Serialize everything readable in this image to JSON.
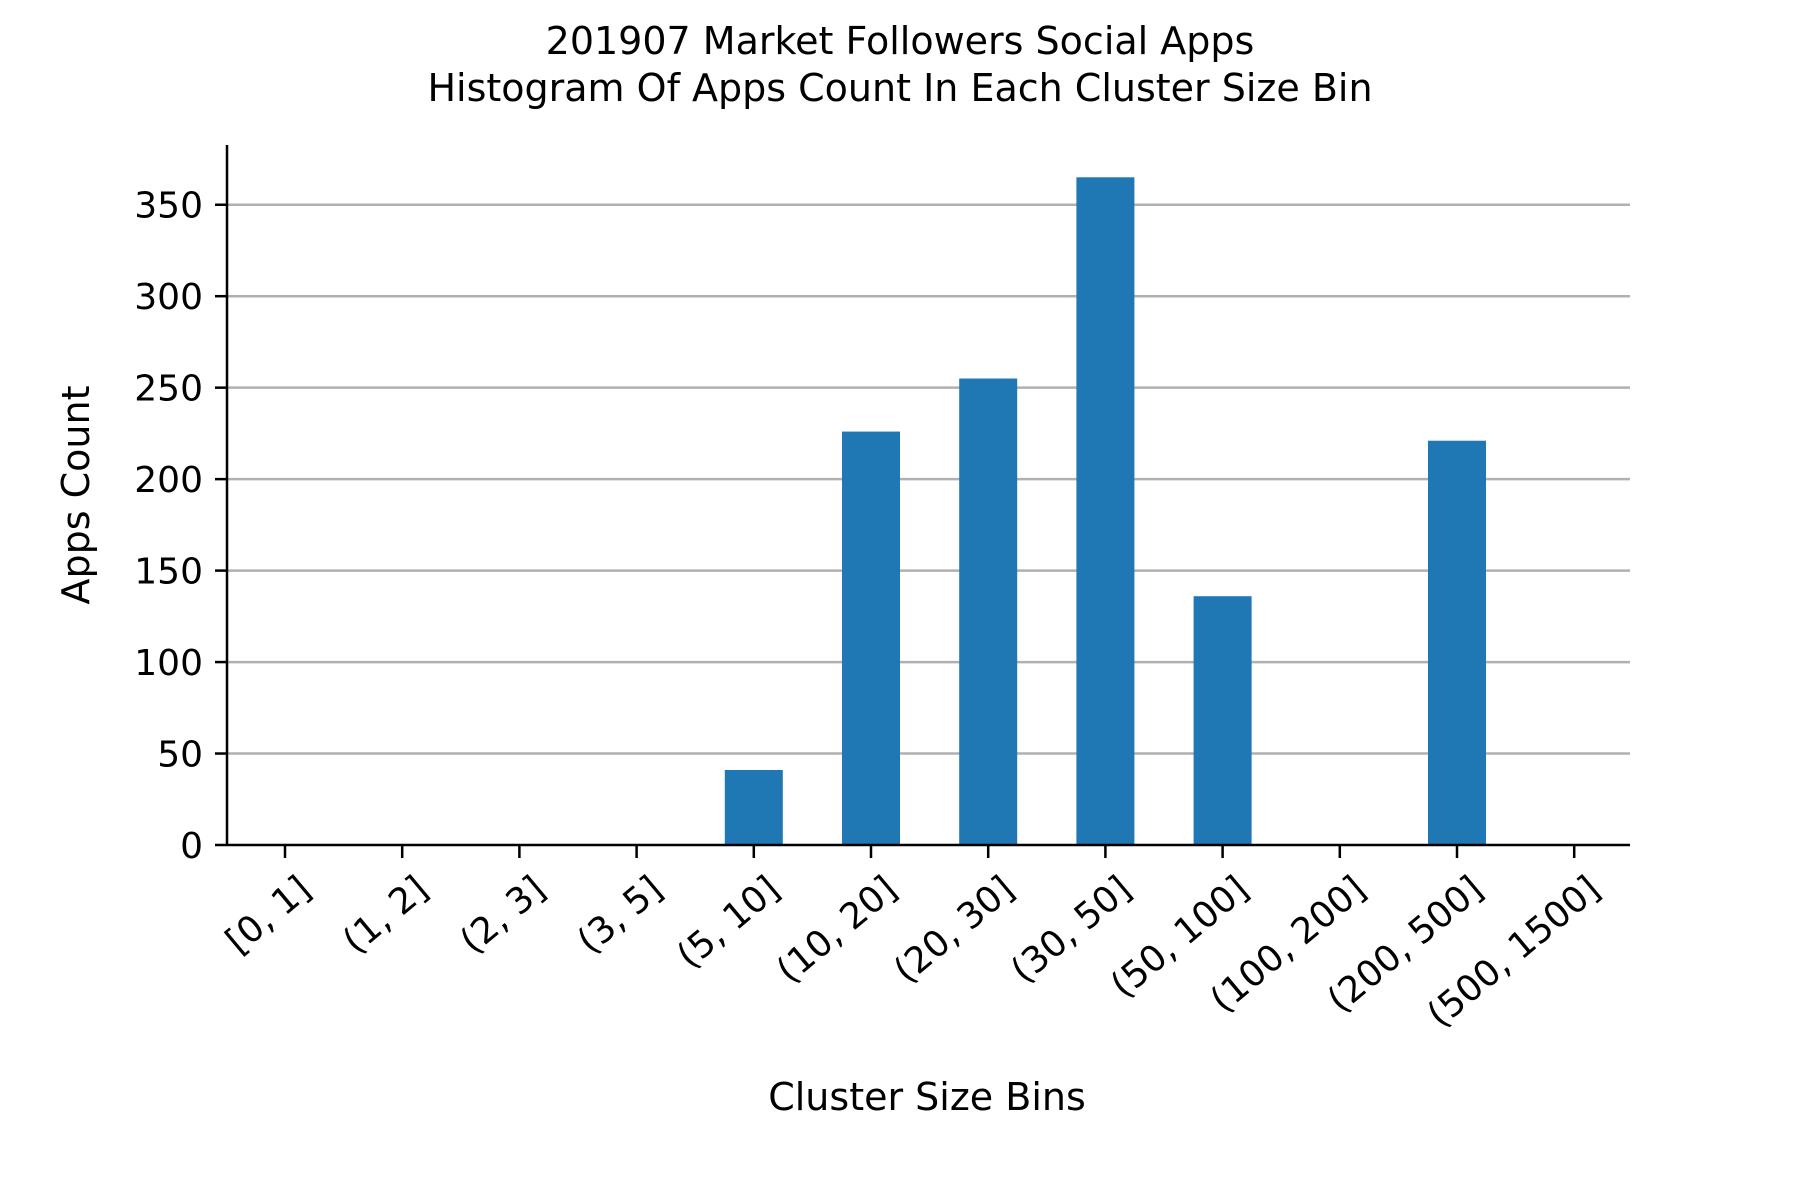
{
  "chart_data": {
    "type": "bar",
    "title": "201907 Market Followers Social Apps",
    "subtitle": "Histogram Of Apps Count In Each Cluster Size Bin",
    "xlabel": "Cluster Size Bins",
    "ylabel": "Apps Count",
    "categories": [
      "[0, 1]",
      "(1, 2]",
      "(2, 3]",
      "(3, 5]",
      "(5, 10]",
      "(10, 20]",
      "(20, 30]",
      "(30, 50]",
      "(50, 100]",
      "(100, 200]",
      "(200, 500]",
      "(500, 1500]"
    ],
    "values": [
      0,
      0,
      0,
      0,
      41,
      226,
      255,
      365,
      136,
      0,
      221,
      0
    ],
    "ylim": [
      0,
      382
    ],
    "yticks": [
      0,
      50,
      100,
      150,
      200,
      250,
      300,
      350
    ],
    "grid": "horizontal",
    "bar_color": "#1f77b4",
    "grid_color": "#b0b0b0"
  }
}
